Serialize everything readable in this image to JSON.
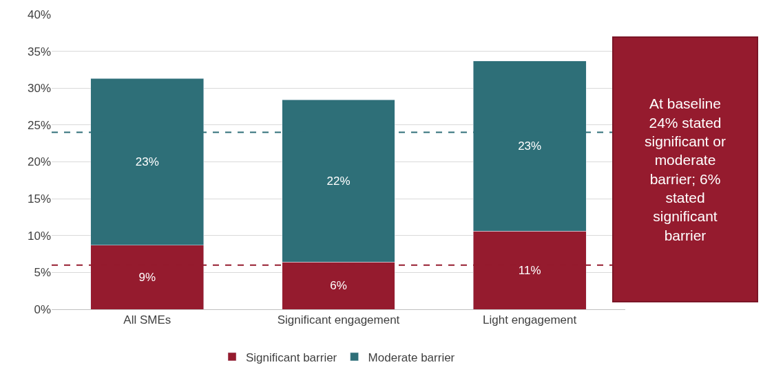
{
  "chart_data": {
    "type": "bar",
    "stacked": true,
    "categories": [
      "All SMEs",
      "Significant engagement",
      "Light engagement"
    ],
    "series": [
      {
        "name": "Significant barrier",
        "color": "#951b2e",
        "values": [
          8.7,
          6.4,
          10.6
        ],
        "value_labels": [
          "9%",
          "6%",
          "11%"
        ]
      },
      {
        "name": "Moderate barrier",
        "color": "#2e6f78",
        "values": [
          22.6,
          22.0,
          23.1
        ],
        "value_labels": [
          "23%",
          "22%",
          "23%"
        ]
      }
    ],
    "ylim": [
      0,
      40
    ],
    "yticks": [
      {
        "value": 0,
        "label": "0%"
      },
      {
        "value": 5,
        "label": "5%"
      },
      {
        "value": 10,
        "label": "10%"
      },
      {
        "value": 15,
        "label": "15%"
      },
      {
        "value": 20,
        "label": "20%"
      },
      {
        "value": 25,
        "label": "25%"
      },
      {
        "value": 30,
        "label": "30%"
      },
      {
        "value": 35,
        "label": "35%"
      },
      {
        "value": 40,
        "label": "40%"
      }
    ],
    "grid": "y",
    "legend": "bottom",
    "ref_lines": [
      {
        "axis": "y",
        "value": 24,
        "color": "#2e6f78",
        "line_style": "dashed"
      },
      {
        "axis": "y",
        "value": 6,
        "color": "#951b2e",
        "line_style": "dashed"
      }
    ],
    "annotations": [
      "At baseline 24% stated significant or moderate barrier; 6% stated significant barrier"
    ]
  }
}
